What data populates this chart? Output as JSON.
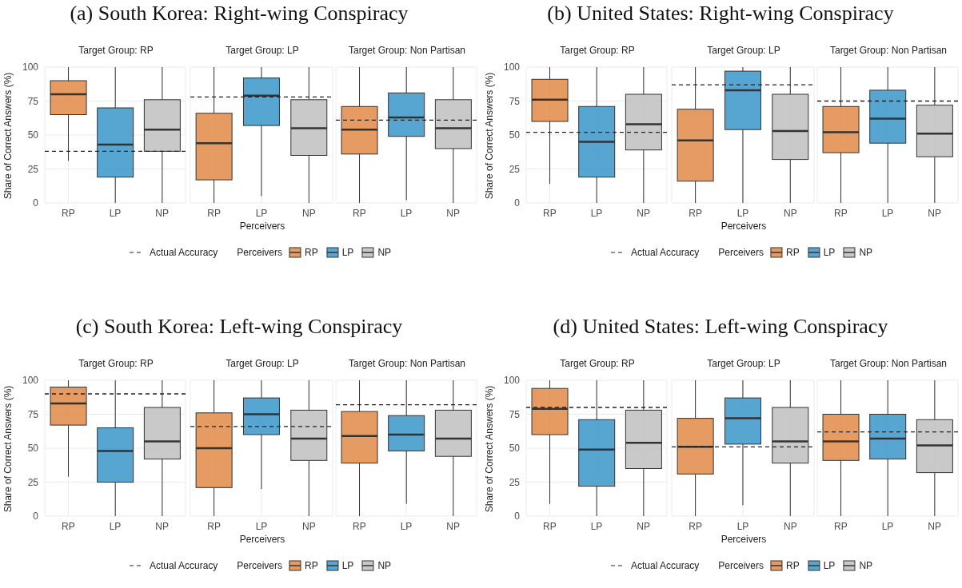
{
  "chart_data": [
    {
      "type": "box",
      "title": "(a) South Korea: Right-wing Conspiracy",
      "subtitle": "Target Group: RP",
      "ylabel": "Share of Correct Answers (%)",
      "categories": [
        "RP",
        "LP",
        "NP"
      ],
      "colors": [
        "#e08a45",
        "#3a96c9",
        "#bfbfbf"
      ],
      "ylim": [
        0,
        100
      ],
      "yticks": [
        0,
        25,
        50,
        75,
        100
      ],
      "grid": true,
      "ref_lines": [
        {
          "axis": "y",
          "value": 38,
          "line_style": "dashed"
        }
      ],
      "boxes": [
        {
          "low": 31,
          "q1": 65,
          "median": 80,
          "q3": 90,
          "high": 100
        },
        {
          "low": 0,
          "q1": 19,
          "median": 43,
          "q3": 70,
          "high": 100
        },
        {
          "low": 0,
          "q1": 38,
          "median": 54,
          "q3": 76,
          "high": 100
        }
      ]
    },
    {
      "type": "box",
      "subtitle": "Target Group: LP",
      "xlabel": "Perceivers",
      "legend_title": "Perceivers",
      "legend": "bottom",
      "tick_labels": "x",
      "categories": [
        "RP",
        "LP",
        "NP"
      ],
      "colors": [
        "#e08a45",
        "#3a96c9",
        "#bfbfbf"
      ],
      "ylim": [
        0,
        100
      ],
      "yticks": [
        0,
        25,
        50,
        75,
        100
      ],
      "grid": true,
      "ref_lines": [
        {
          "axis": "y",
          "value": 78,
          "label": "Actual Accuracy",
          "line_style": "dashed"
        }
      ],
      "boxes": [
        {
          "low": 0,
          "q1": 17,
          "median": 44,
          "q3": 66,
          "high": 100
        },
        {
          "low": 5,
          "q1": 57,
          "median": 79,
          "q3": 92,
          "high": 100
        },
        {
          "low": 0,
          "q1": 35,
          "median": 55,
          "q3": 76,
          "high": 100
        }
      ]
    },
    {
      "type": "box",
      "subtitle": "Target Group: Non Partisan",
      "tick_labels": "x",
      "categories": [
        "RP",
        "LP",
        "NP"
      ],
      "colors": [
        "#e08a45",
        "#3a96c9",
        "#bfbfbf"
      ],
      "ylim": [
        0,
        100
      ],
      "yticks": [
        0,
        25,
        50,
        75,
        100
      ],
      "grid": true,
      "ref_lines": [
        {
          "axis": "y",
          "value": 61,
          "line_style": "dashed"
        }
      ],
      "boxes": [
        {
          "low": 0,
          "q1": 36,
          "median": 54,
          "q3": 71,
          "high": 100
        },
        {
          "low": 2,
          "q1": 49,
          "median": 63,
          "q3": 81,
          "high": 100
        },
        {
          "low": 0,
          "q1": 40,
          "median": 55,
          "q3": 76,
          "high": 100
        }
      ]
    },
    {
      "type": "box",
      "title": "(b) United States: Right-wing Conspiracy",
      "subtitle": "Target Group: RP",
      "ylabel": "Share of Correct Answers (%)",
      "categories": [
        "RP",
        "LP",
        "NP"
      ],
      "colors": [
        "#e08a45",
        "#3a96c9",
        "#bfbfbf"
      ],
      "ylim": [
        0,
        100
      ],
      "yticks": [
        0,
        25,
        50,
        75,
        100
      ],
      "grid": true,
      "ref_lines": [
        {
          "axis": "y",
          "value": 52,
          "line_style": "dashed"
        }
      ],
      "boxes": [
        {
          "low": 14,
          "q1": 60,
          "median": 76,
          "q3": 91,
          "high": 100
        },
        {
          "low": 0,
          "q1": 19,
          "median": 45,
          "q3": 71,
          "high": 100
        },
        {
          "low": 0,
          "q1": 39,
          "median": 58,
          "q3": 80,
          "high": 100
        }
      ]
    },
    {
      "type": "box",
      "subtitle": "Target Group: LP",
      "xlabel": "Perceivers",
      "legend_title": "Perceivers",
      "legend": "bottom",
      "tick_labels": "x",
      "categories": [
        "RP",
        "LP",
        "NP"
      ],
      "colors": [
        "#e08a45",
        "#3a96c9",
        "#bfbfbf"
      ],
      "ylim": [
        0,
        100
      ],
      "yticks": [
        0,
        25,
        50,
        75,
        100
      ],
      "grid": true,
      "ref_lines": [
        {
          "axis": "y",
          "value": 87,
          "label": "Actual Accuracy",
          "line_style": "dashed"
        }
      ],
      "boxes": [
        {
          "low": 0,
          "q1": 16,
          "median": 46,
          "q3": 69,
          "high": 100
        },
        {
          "low": 0,
          "q1": 54,
          "median": 83,
          "q3": 97,
          "high": 100
        },
        {
          "low": 0,
          "q1": 32,
          "median": 53,
          "q3": 80,
          "high": 100
        }
      ]
    },
    {
      "type": "box",
      "subtitle": "Target Group: Non Partisan",
      "tick_labels": "x",
      "categories": [
        "RP",
        "LP",
        "NP"
      ],
      "colors": [
        "#e08a45",
        "#3a96c9",
        "#bfbfbf"
      ],
      "ylim": [
        0,
        100
      ],
      "yticks": [
        0,
        25,
        50,
        75,
        100
      ],
      "grid": true,
      "ref_lines": [
        {
          "axis": "y",
          "value": 75,
          "line_style": "dashed"
        }
      ],
      "boxes": [
        {
          "low": 0,
          "q1": 37,
          "median": 52,
          "q3": 71,
          "high": 100
        },
        {
          "low": 0,
          "q1": 44,
          "median": 62,
          "q3": 83,
          "high": 100
        },
        {
          "low": 0,
          "q1": 34,
          "median": 51,
          "q3": 72,
          "high": 100
        }
      ]
    },
    {
      "type": "box",
      "title": "(c) South Korea: Left-wing Conspiracy",
      "subtitle": "Target Group: RP",
      "ylabel": "Share of Correct Answers (%)",
      "categories": [
        "RP",
        "LP",
        "NP"
      ],
      "colors": [
        "#e08a45",
        "#3a96c9",
        "#bfbfbf"
      ],
      "ylim": [
        0,
        100
      ],
      "yticks": [
        0,
        25,
        50,
        75,
        100
      ],
      "grid": true,
      "ref_lines": [
        {
          "axis": "y",
          "value": 90,
          "line_style": "dashed"
        }
      ],
      "boxes": [
        {
          "low": 29,
          "q1": 67,
          "median": 83,
          "q3": 95,
          "high": 100
        },
        {
          "low": 0,
          "q1": 25,
          "median": 48,
          "q3": 65,
          "high": 100
        },
        {
          "low": 0,
          "q1": 42,
          "median": 55,
          "q3": 80,
          "high": 100
        }
      ]
    },
    {
      "type": "box",
      "subtitle": "Target Group: LP",
      "xlabel": "Perceivers",
      "legend_title": "Perceivers",
      "legend": "bottom",
      "tick_labels": "x",
      "categories": [
        "RP",
        "LP",
        "NP"
      ],
      "colors": [
        "#e08a45",
        "#3a96c9",
        "#bfbfbf"
      ],
      "ylim": [
        0,
        100
      ],
      "yticks": [
        0,
        25,
        50,
        75,
        100
      ],
      "grid": true,
      "ref_lines": [
        {
          "axis": "y",
          "value": 66,
          "label": "Actual Accuracy",
          "line_style": "dashed"
        }
      ],
      "boxes": [
        {
          "low": 0,
          "q1": 21,
          "median": 50,
          "q3": 76,
          "high": 100
        },
        {
          "low": 20,
          "q1": 60,
          "median": 75,
          "q3": 87,
          "high": 100
        },
        {
          "low": 0,
          "q1": 41,
          "median": 57,
          "q3": 78,
          "high": 100
        }
      ]
    },
    {
      "type": "box",
      "subtitle": "Target Group: Non Partisan",
      "tick_labels": "x",
      "categories": [
        "RP",
        "LP",
        "NP"
      ],
      "colors": [
        "#e08a45",
        "#3a96c9",
        "#bfbfbf"
      ],
      "ylim": [
        0,
        100
      ],
      "yticks": [
        0,
        25,
        50,
        75,
        100
      ],
      "grid": true,
      "ref_lines": [
        {
          "axis": "y",
          "value": 82,
          "line_style": "dashed"
        }
      ],
      "boxes": [
        {
          "low": 0,
          "q1": 39,
          "median": 59,
          "q3": 77,
          "high": 100
        },
        {
          "low": 9,
          "q1": 48,
          "median": 60,
          "q3": 74,
          "high": 100
        },
        {
          "low": 0,
          "q1": 44,
          "median": 57,
          "q3": 78,
          "high": 100
        }
      ]
    },
    {
      "type": "box",
      "title": "(d) United States: Left-wing Conspiracy",
      "subtitle": "Target Group: RP",
      "ylabel": "Share of Correct Answers (%)",
      "categories": [
        "RP",
        "LP",
        "NP"
      ],
      "colors": [
        "#e08a45",
        "#3a96c9",
        "#bfbfbf"
      ],
      "ylim": [
        0,
        100
      ],
      "yticks": [
        0,
        25,
        50,
        75,
        100
      ],
      "grid": true,
      "ref_lines": [
        {
          "axis": "y",
          "value": 80,
          "line_style": "dashed"
        }
      ],
      "boxes": [
        {
          "low": 9,
          "q1": 60,
          "median": 79,
          "q3": 94,
          "high": 100
        },
        {
          "low": 0,
          "q1": 22,
          "median": 49,
          "q3": 71,
          "high": 100
        },
        {
          "low": 0,
          "q1": 35,
          "median": 54,
          "q3": 78,
          "high": 100
        }
      ]
    },
    {
      "type": "box",
      "subtitle": "Target Group: LP",
      "xlabel": "Perceivers",
      "legend_title": "Perceivers",
      "legend": "bottom",
      "tick_labels": "x",
      "categories": [
        "RP",
        "LP",
        "NP"
      ],
      "colors": [
        "#e08a45",
        "#3a96c9",
        "#bfbfbf"
      ],
      "ylim": [
        0,
        100
      ],
      "yticks": [
        0,
        25,
        50,
        75,
        100
      ],
      "grid": true,
      "ref_lines": [
        {
          "axis": "y",
          "value": 51,
          "label": "Actual Accuracy",
          "line_style": "dashed"
        }
      ],
      "boxes": [
        {
          "low": 0,
          "q1": 31,
          "median": 51,
          "q3": 72,
          "high": 100
        },
        {
          "low": 8,
          "q1": 53,
          "median": 72,
          "q3": 87,
          "high": 100
        },
        {
          "low": 0,
          "q1": 39,
          "median": 55,
          "q3": 80,
          "high": 100
        }
      ]
    },
    {
      "type": "box",
      "subtitle": "Target Group: Non Partisan",
      "tick_labels": "x",
      "categories": [
        "RP",
        "LP",
        "NP"
      ],
      "colors": [
        "#e08a45",
        "#3a96c9",
        "#bfbfbf"
      ],
      "ylim": [
        0,
        100
      ],
      "yticks": [
        0,
        25,
        50,
        75,
        100
      ],
      "grid": true,
      "ref_lines": [
        {
          "axis": "y",
          "value": 62,
          "line_style": "dashed"
        }
      ],
      "boxes": [
        {
          "low": 0,
          "q1": 41,
          "median": 55,
          "q3": 75,
          "high": 100
        },
        {
          "low": 0,
          "q1": 42,
          "median": 57,
          "q3": 75,
          "high": 100
        },
        {
          "low": 0,
          "q1": 32,
          "median": 52,
          "q3": 71,
          "high": 100
        }
      ]
    }
  ]
}
